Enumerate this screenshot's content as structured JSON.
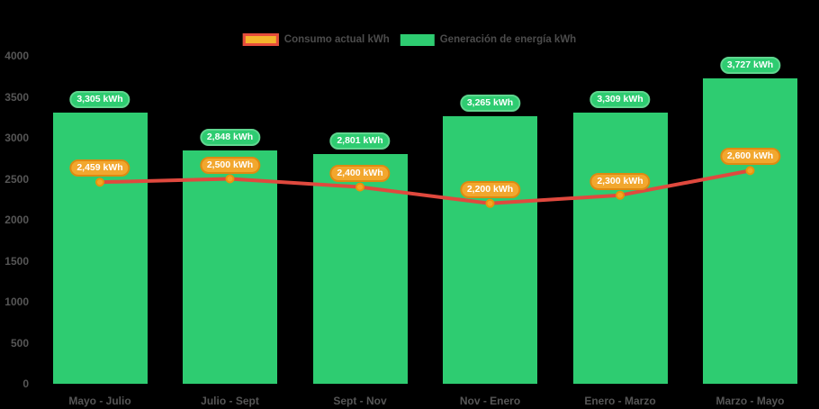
{
  "chart_data": {
    "type": "bar",
    "categories": [
      "Mayo - Julio",
      "Julio - Sept",
      "Sept - Nov",
      "Nov - Enero",
      "Enero - Marzo",
      "Marzo - Mayo"
    ],
    "series": [
      {
        "name": "Generación de energía kWh",
        "render": "bar",
        "color": "#2ecc71",
        "values": [
          3305,
          2848,
          2801,
          3265,
          3309,
          3727
        ],
        "labels": [
          "3,305 kWh",
          "2,848 kWh",
          "2,801 kWh",
          "3,265 kWh",
          "3,309 kWh",
          "3,727 kWh"
        ]
      },
      {
        "name": "Consumo actual kWh",
        "render": "line",
        "color": "#e0493e",
        "marker_color": "#f5a623",
        "values": [
          2459,
          2500,
          2400,
          2200,
          2300,
          2600
        ],
        "labels": [
          "2,459 kWh",
          "2,500 kWh",
          "2,400 kWh",
          "2,200 kWh",
          "2,300 kWh",
          "2,600 kWh"
        ]
      }
    ],
    "ylim": [
      0,
      4000
    ],
    "y_ticks": [
      0,
      500,
      1000,
      1500,
      2000,
      2500,
      3000,
      3500,
      4000
    ],
    "grid": false,
    "legend_position": "top-center",
    "title": "",
    "xlabel": "",
    "ylabel": ""
  },
  "legend": {
    "items": [
      {
        "label": "Consumo actual kWh"
      },
      {
        "label": "Generación de energía kWh"
      }
    ]
  },
  "colors": {
    "green": "#2ecc71",
    "line_red": "#e0493e",
    "marker_fill": "#f5a623",
    "marker_stroke": "#e8930c",
    "pill_orange_fill": "#f2a72e",
    "pill_orange_border": "#de8a12",
    "pill_green_border": "#5fd68f",
    "swatch_consumo_fill": "#f5b32c",
    "swatch_consumo_border": "#e74c3c",
    "axis_text": "#565656",
    "label_text": "#4c4c4c"
  }
}
